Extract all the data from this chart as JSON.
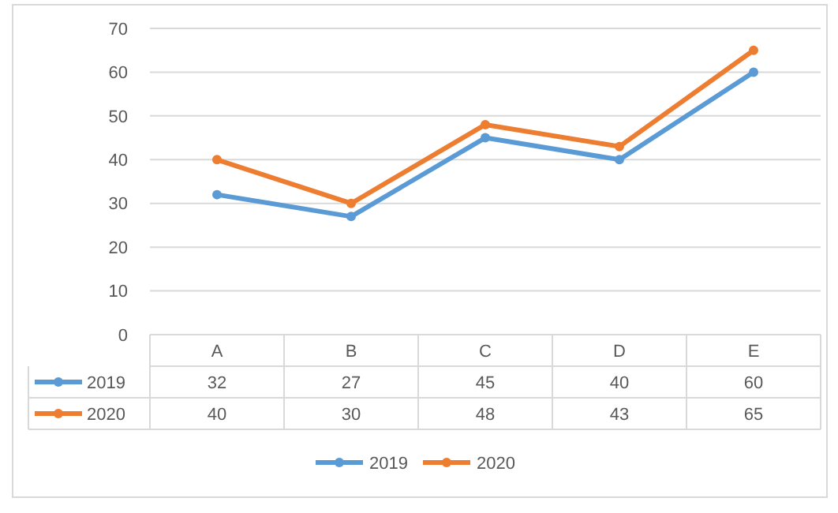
{
  "chart_data": {
    "type": "line",
    "categories": [
      "A",
      "B",
      "C",
      "D",
      "E"
    ],
    "series": [
      {
        "name": "2019",
        "color": "#5b9bd5",
        "values": [
          32,
          27,
          45,
          40,
          60
        ]
      },
      {
        "name": "2020",
        "color": "#ed7d31",
        "values": [
          40,
          30,
          48,
          43,
          65
        ]
      }
    ],
    "ylim": [
      0,
      70
    ],
    "yticks": [
      0,
      10,
      20,
      30,
      40,
      50,
      60,
      70
    ],
    "grid": "y",
    "marker": "circle",
    "data_labels": true,
    "legend": "bottom"
  }
}
